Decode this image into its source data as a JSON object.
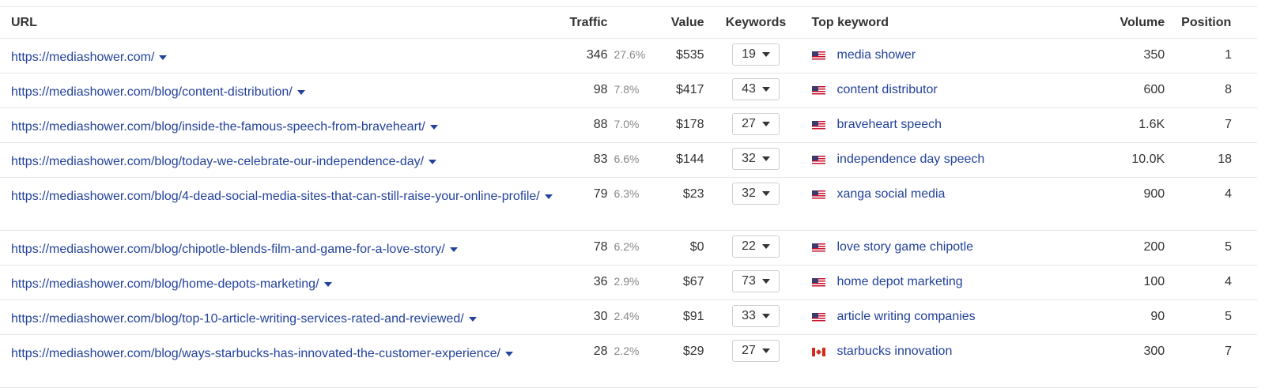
{
  "columns": {
    "url": "URL",
    "traffic": "Traffic",
    "value": "Value",
    "keywords": "Keywords",
    "top_keyword": "Top keyword",
    "volume": "Volume",
    "position": "Position"
  },
  "rows": [
    {
      "url": "https://mediashower.com/",
      "traffic": "346",
      "traffic_pct": "27.6%",
      "value": "$535",
      "keywords": "19",
      "flag": "us-flag-icon",
      "top_keyword": "media shower",
      "volume": "350",
      "position": "1"
    },
    {
      "url": "https://mediashower.com/blog/content-distribution/",
      "traffic": "98",
      "traffic_pct": "7.8%",
      "value": "$417",
      "keywords": "43",
      "flag": "us-flag-icon",
      "top_keyword": "content distributor",
      "volume": "600",
      "position": "8"
    },
    {
      "url": "https://mediashower.com/blog/inside-the-famous-speech-from-braveheart/",
      "traffic": "88",
      "traffic_pct": "7.0%",
      "value": "$178",
      "keywords": "27",
      "flag": "us-flag-icon",
      "top_keyword": "braveheart speech",
      "volume": "1.6K",
      "position": "7"
    },
    {
      "url": "https://mediashower.com/blog/today-we-celebrate-our-independence-day/",
      "traffic": "83",
      "traffic_pct": "6.6%",
      "value": "$144",
      "keywords": "32",
      "flag": "us-flag-icon",
      "top_keyword": "independence day speech",
      "volume": "10.0K",
      "position": "18"
    },
    {
      "url": "https://mediashower.com/blog/4-dead-social-media-sites-that-can-still-raise-your-online-profile/",
      "traffic": "79",
      "traffic_pct": "6.3%",
      "value": "$23",
      "keywords": "32",
      "flag": "us-flag-icon",
      "top_keyword": "xanga social media",
      "volume": "900",
      "position": "4"
    },
    {
      "url": "https://mediashower.com/blog/chipotle-blends-film-and-game-for-a-love-story/",
      "traffic": "78",
      "traffic_pct": "6.2%",
      "value": "$0",
      "keywords": "22",
      "flag": "us-flag-icon",
      "top_keyword": "love story game chipotle",
      "volume": "200",
      "position": "5"
    },
    {
      "url": "https://mediashower.com/blog/home-depots-marketing/",
      "traffic": "36",
      "traffic_pct": "2.9%",
      "value": "$67",
      "keywords": "73",
      "flag": "us-flag-icon",
      "top_keyword": "home depot marketing",
      "volume": "100",
      "position": "4"
    },
    {
      "url": "https://mediashower.com/blog/top-10-article-writing-services-rated-and-reviewed/",
      "traffic": "30",
      "traffic_pct": "2.4%",
      "value": "$91",
      "keywords": "33",
      "flag": "us-flag-icon",
      "top_keyword": "article writing companies",
      "volume": "90",
      "position": "5"
    },
    {
      "url": "https://mediashower.com/blog/ways-starbucks-has-innovated-the-customer-experience/",
      "traffic": "28",
      "traffic_pct": "2.2%",
      "value": "$29",
      "keywords": "27",
      "flag": "canada-flag-icon",
      "top_keyword": "starbucks innovation",
      "volume": "300",
      "position": "7"
    }
  ]
}
